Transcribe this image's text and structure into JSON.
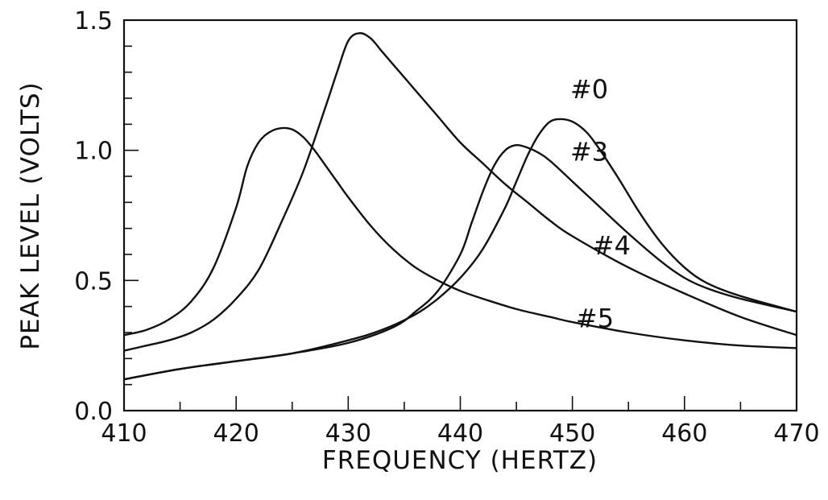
{
  "chart_data": {
    "type": "line",
    "title": "",
    "xlabel": "FREQUENCY (HERTZ)",
    "ylabel": "PEAK LEVEL (VOLTS)",
    "xlim": [
      410,
      470
    ],
    "ylim": [
      0.0,
      1.5
    ],
    "x_ticks": [
      410,
      420,
      430,
      440,
      450,
      460,
      470
    ],
    "x_tick_labels": [
      "410",
      "420",
      "430",
      "440",
      "450",
      "460",
      "470"
    ],
    "y_ticks": [
      0.0,
      0.5,
      1.0,
      1.5
    ],
    "y_tick_labels": [
      "0.0",
      "0.5",
      "1.0",
      "1.5"
    ],
    "grid": false,
    "legend": "none",
    "series": [
      {
        "name": "#5",
        "x": [
          410,
          412,
          414,
          416,
          418,
          420,
          421,
          422,
          423,
          424,
          425,
          426,
          427,
          428,
          429,
          430,
          432,
          434,
          436,
          438,
          440,
          442,
          445,
          448,
          450,
          455,
          460,
          465,
          470
        ],
        "y": [
          0.29,
          0.31,
          0.35,
          0.42,
          0.55,
          0.78,
          0.94,
          1.03,
          1.07,
          1.085,
          1.08,
          1.05,
          1.0,
          0.94,
          0.88,
          0.82,
          0.71,
          0.62,
          0.55,
          0.5,
          0.46,
          0.43,
          0.39,
          0.36,
          0.34,
          0.3,
          0.27,
          0.25,
          0.24
        ]
      },
      {
        "name": "#4",
        "x": [
          410,
          412,
          414,
          416,
          418,
          420,
          422,
          424,
          426,
          428,
          429,
          430,
          431,
          432,
          433,
          434,
          436,
          438,
          440,
          442,
          444,
          446,
          448,
          450,
          455,
          460,
          465,
          470
        ],
        "y": [
          0.23,
          0.25,
          0.27,
          0.3,
          0.35,
          0.43,
          0.54,
          0.72,
          0.92,
          1.17,
          1.3,
          1.42,
          1.45,
          1.43,
          1.38,
          1.33,
          1.23,
          1.13,
          1.03,
          0.95,
          0.87,
          0.8,
          0.73,
          0.67,
          0.55,
          0.45,
          0.36,
          0.29
        ]
      },
      {
        "name": "#3",
        "x": [
          410,
          415,
          420,
          425,
          430,
          434,
          436,
          438,
          440,
          441,
          442,
          443,
          444,
          445,
          446,
          447,
          448,
          450,
          452,
          455,
          458,
          460,
          462,
          465,
          470
        ],
        "y": [
          0.12,
          0.16,
          0.19,
          0.22,
          0.26,
          0.32,
          0.38,
          0.46,
          0.6,
          0.72,
          0.84,
          0.94,
          1.0,
          1.02,
          1.01,
          0.99,
          0.96,
          0.88,
          0.8,
          0.68,
          0.57,
          0.51,
          0.47,
          0.43,
          0.38
        ]
      },
      {
        "name": "#0",
        "x": [
          410,
          415,
          420,
          425,
          430,
          433,
          436,
          438,
          440,
          442,
          444,
          445,
          446,
          447,
          448,
          449,
          450,
          451,
          452,
          454,
          456,
          458,
          460,
          462,
          465,
          470
        ],
        "y": [
          0.12,
          0.16,
          0.19,
          0.22,
          0.27,
          0.31,
          0.37,
          0.43,
          0.51,
          0.62,
          0.78,
          0.88,
          0.98,
          1.06,
          1.11,
          1.12,
          1.11,
          1.08,
          1.03,
          0.9,
          0.76,
          0.64,
          0.55,
          0.49,
          0.44,
          0.38
        ]
      }
    ],
    "annotations": [
      {
        "text": "#0",
        "x": 451.5,
        "y": 1.2
      },
      {
        "text": "#3",
        "x": 451.5,
        "y": 0.96
      },
      {
        "text": "#4",
        "x": 453.5,
        "y": 0.6
      },
      {
        "text": "#5",
        "x": 452,
        "y": 0.32
      }
    ]
  },
  "colors": {
    "ink": "#111111",
    "background": "#ffffff"
  }
}
